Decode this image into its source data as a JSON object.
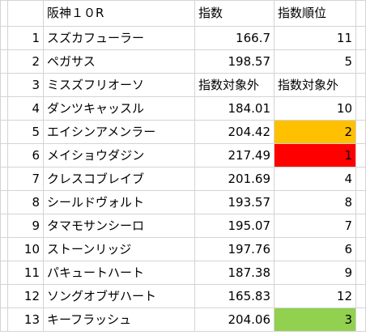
{
  "sheet": {
    "header": {
      "race": "阪神１０R",
      "score": "指数",
      "rank": "指数順位"
    },
    "rows": [
      {
        "no": "1",
        "name": "スズカフューラー",
        "score": "166.7",
        "rank": "11",
        "score_is_text": false,
        "rank_is_text": false,
        "highlight": ""
      },
      {
        "no": "2",
        "name": "ペガサス",
        "score": "198.57",
        "rank": "5",
        "score_is_text": false,
        "rank_is_text": false,
        "highlight": ""
      },
      {
        "no": "3",
        "name": "ミスズフリオーソ",
        "score": "指数対象外",
        "rank": "指数対象外",
        "score_is_text": true,
        "rank_is_text": true,
        "highlight": ""
      },
      {
        "no": "4",
        "name": "ダンツキャッスル",
        "score": "184.01",
        "rank": "10",
        "score_is_text": false,
        "rank_is_text": false,
        "highlight": ""
      },
      {
        "no": "5",
        "name": "エイシンアメンラー",
        "score": "204.42",
        "rank": "2",
        "score_is_text": false,
        "rank_is_text": false,
        "highlight": "#FFC000"
      },
      {
        "no": "6",
        "name": "メイショウダジン",
        "score": "217.49",
        "rank": "1",
        "score_is_text": false,
        "rank_is_text": false,
        "highlight": "#FF0000"
      },
      {
        "no": "7",
        "name": "クレスコブレイブ",
        "score": "201.69",
        "rank": "4",
        "score_is_text": false,
        "rank_is_text": false,
        "highlight": ""
      },
      {
        "no": "8",
        "name": "シールドヴォルト",
        "score": "193.57",
        "rank": "8",
        "score_is_text": false,
        "rank_is_text": false,
        "highlight": ""
      },
      {
        "no": "9",
        "name": "タマモサンシーロ",
        "score": "195.07",
        "rank": "7",
        "score_is_text": false,
        "rank_is_text": false,
        "highlight": ""
      },
      {
        "no": "10",
        "name": "ストーンリッジ",
        "score": "197.76",
        "rank": "6",
        "score_is_text": false,
        "rank_is_text": false,
        "highlight": ""
      },
      {
        "no": "11",
        "name": "パキュートハート",
        "score": "187.38",
        "rank": "9",
        "score_is_text": false,
        "rank_is_text": false,
        "highlight": ""
      },
      {
        "no": "12",
        "name": "ソングオブザハート",
        "score": "165.83",
        "rank": "12",
        "score_is_text": false,
        "rank_is_text": false,
        "highlight": ""
      },
      {
        "no": "13",
        "name": "キーフラッシュ",
        "score": "204.06",
        "rank": "3",
        "score_is_text": false,
        "rank_is_text": false,
        "highlight": "#92D050"
      }
    ]
  }
}
